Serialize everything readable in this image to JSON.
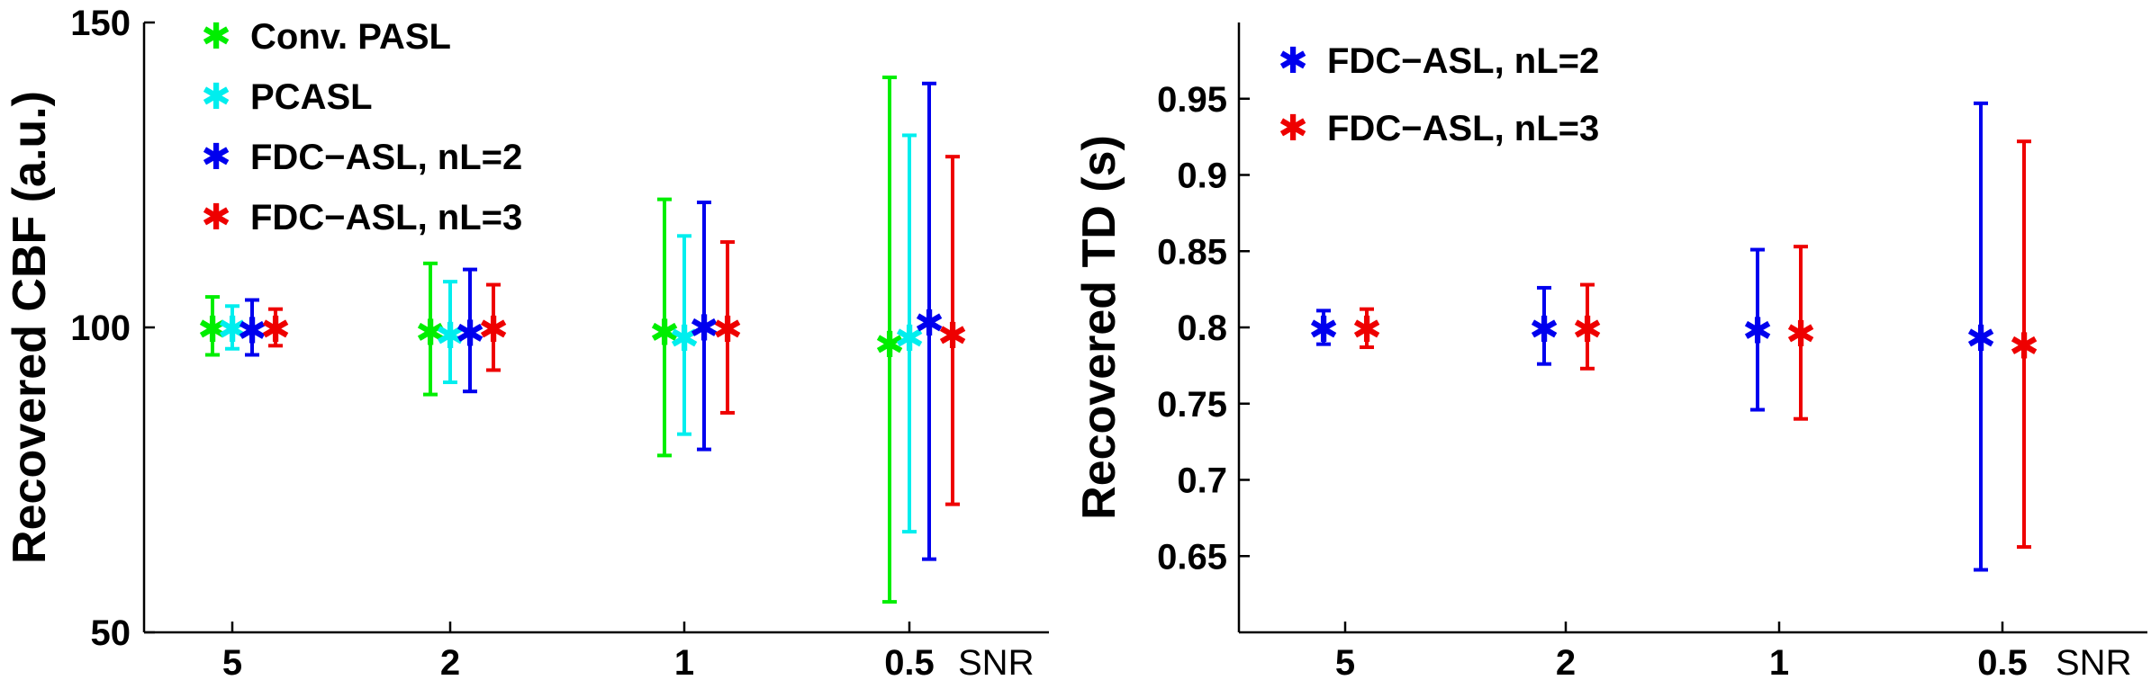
{
  "chart_data": [
    {
      "type": "errorbar",
      "ylabel": "Recovered CBF (a.u.)",
      "xlabel": "SNR",
      "ylim": [
        50,
        150
      ],
      "yticks": [
        "150",
        "100",
        "50"
      ],
      "categories": [
        "5",
        "2",
        "1",
        "0.5"
      ],
      "legend_position": "top-left",
      "series": [
        {
          "name": "Conv. PASL",
          "color": "#00ee00",
          "points": [
            {
              "x": "5",
              "value": 100,
              "low": 95.5,
              "high": 105
            },
            {
              "x": "2",
              "value": 99.5,
              "low": 89,
              "high": 110.5
            },
            {
              "x": "1",
              "value": 99.5,
              "low": 79,
              "high": 121
            },
            {
              "x": "0.5",
              "value": 97.5,
              "low": 55,
              "high": 141
            }
          ]
        },
        {
          "name": "PCASL",
          "color": "#00eeee",
          "points": [
            {
              "x": "5",
              "value": 100,
              "low": 96.5,
              "high": 103.5
            },
            {
              "x": "2",
              "value": 99,
              "low": 91,
              "high": 107.5
            },
            {
              "x": "1",
              "value": 98.5,
              "low": 82.5,
              "high": 115
            },
            {
              "x": "0.5",
              "value": 98.5,
              "low": 66.5,
              "high": 131.5
            }
          ]
        },
        {
          "name": "FDC−ASL, nL=2",
          "color": "#0000ee",
          "points": [
            {
              "x": "5",
              "value": 99.8,
              "low": 95.5,
              "high": 104.5
            },
            {
              "x": "2",
              "value": 99.3,
              "low": 89.5,
              "high": 109.5
            },
            {
              "x": "1",
              "value": 100.2,
              "low": 80,
              "high": 120.5
            },
            {
              "x": "0.5",
              "value": 101,
              "low": 62,
              "high": 140
            }
          ]
        },
        {
          "name": "FDC−ASL, nL=3",
          "color": "#ee0000",
          "points": [
            {
              "x": "5",
              "value": 100,
              "low": 97,
              "high": 103
            },
            {
              "x": "2",
              "value": 100,
              "low": 93,
              "high": 107
            },
            {
              "x": "1",
              "value": 100,
              "low": 86,
              "high": 114
            },
            {
              "x": "0.5",
              "value": 99,
              "low": 71,
              "high": 128
            }
          ]
        }
      ]
    },
    {
      "type": "errorbar",
      "ylabel": "Recovered TD (s)",
      "xlabel": "SNR",
      "ylim": [
        0.6,
        1.0
      ],
      "yticks": [
        "0.95",
        "0.9",
        "0.85",
        "0.8",
        "0.75",
        "0.7",
        "0.65"
      ],
      "categories": [
        "5",
        "2",
        "1",
        "0.5"
      ],
      "legend_position": "top-left",
      "series": [
        {
          "name": "FDC−ASL, nL=2",
          "color": "#0000ee",
          "points": [
            {
              "x": "5",
              "value": 0.8,
              "low": 0.789,
              "high": 0.811
            },
            {
              "x": "2",
              "value": 0.8,
              "low": 0.776,
              "high": 0.826
            },
            {
              "x": "1",
              "value": 0.799,
              "low": 0.746,
              "high": 0.851
            },
            {
              "x": "0.5",
              "value": 0.794,
              "low": 0.641,
              "high": 0.947
            }
          ]
        },
        {
          "name": "FDC−ASL, nL=3",
          "color": "#ee0000",
          "points": [
            {
              "x": "5",
              "value": 0.8,
              "low": 0.787,
              "high": 0.812
            },
            {
              "x": "2",
              "value": 0.8,
              "low": 0.773,
              "high": 0.828
            },
            {
              "x": "1",
              "value": 0.797,
              "low": 0.74,
              "high": 0.853
            },
            {
              "x": "0.5",
              "value": 0.789,
              "low": 0.656,
              "high": 0.922
            }
          ]
        }
      ]
    }
  ]
}
